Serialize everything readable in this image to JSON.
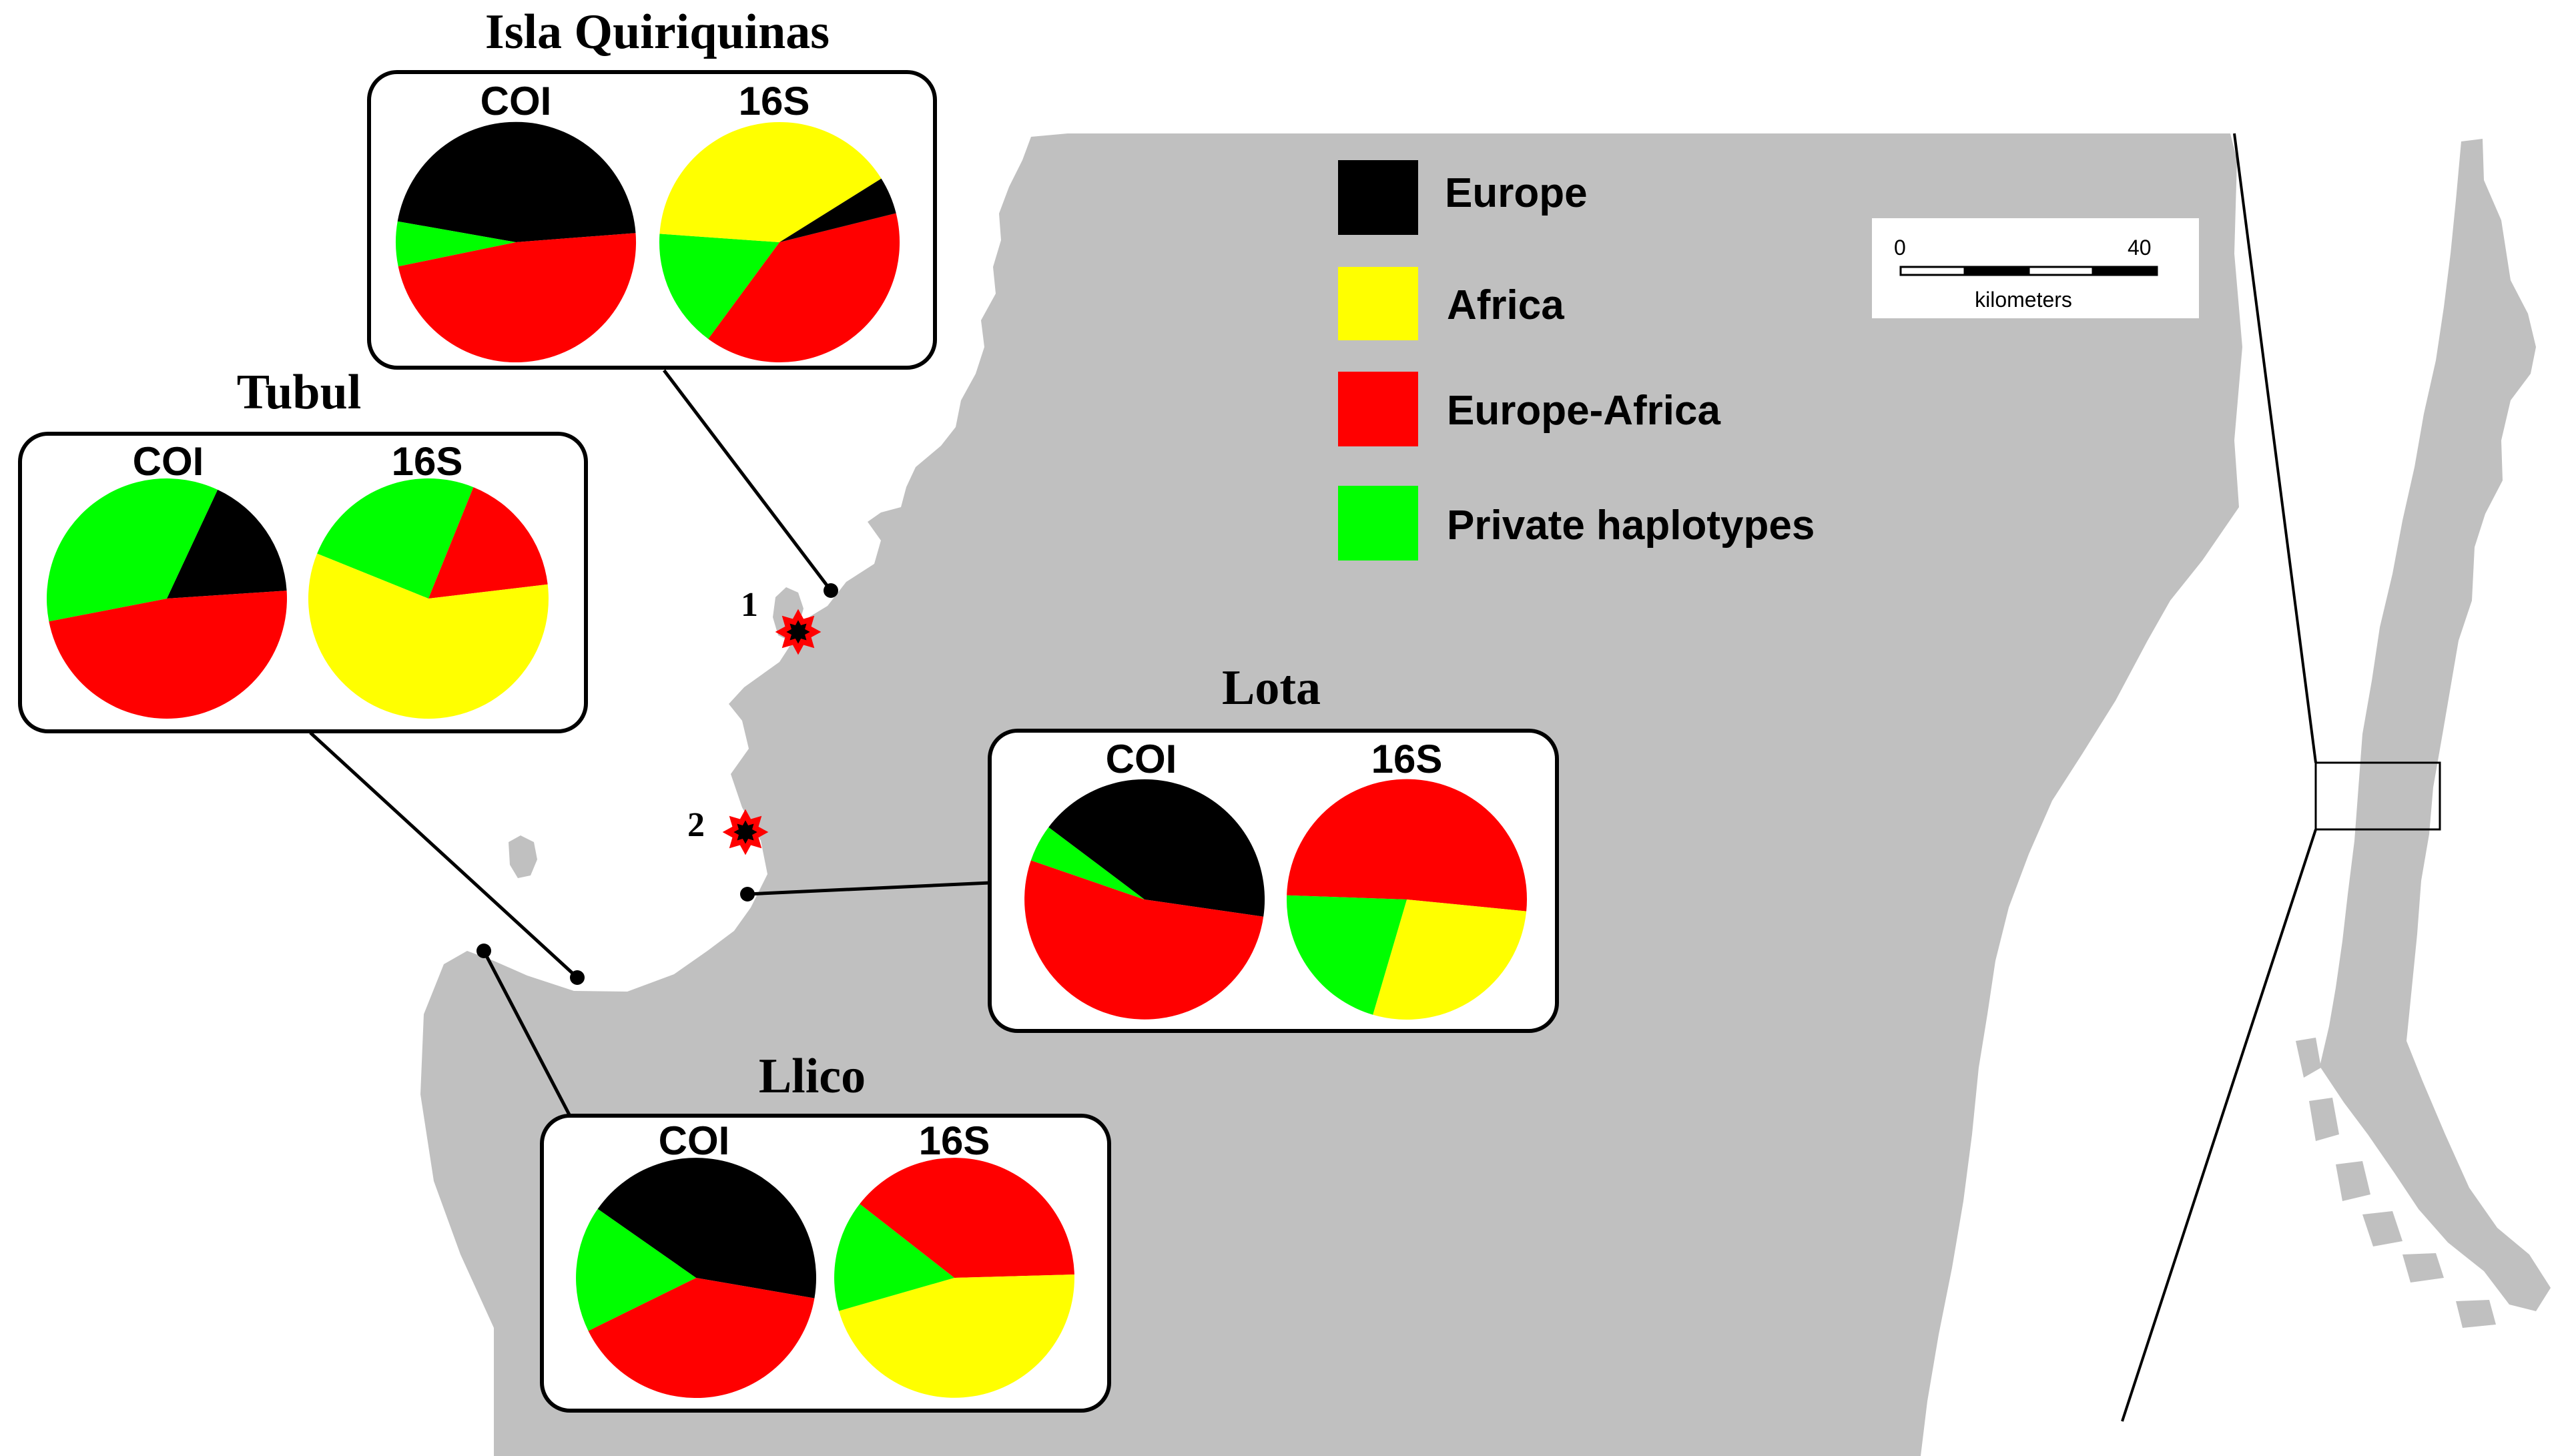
{
  "colors": {
    "land": "#c0c0c0",
    "sea": "#ffffff",
    "europe": "#000000",
    "africa": "#ffff00",
    "europe_africa": "#ff0000",
    "private": "#00ff00"
  },
  "legend": [
    {
      "key": "europe",
      "label": "Europe"
    },
    {
      "key": "africa",
      "label": "Africa"
    },
    {
      "key": "europe_africa",
      "label": "Europe-Africa"
    },
    {
      "key": "private",
      "label": "Private haplotypes"
    }
  ],
  "scale_bar": {
    "start": "0",
    "end": "40",
    "unit": "kilometers"
  },
  "markers": [
    {
      "id": "1",
      "label": "1"
    },
    {
      "id": "2",
      "label": "2"
    }
  ],
  "sites": [
    {
      "name": "Isla Quiriquinas",
      "COI": {
        "label": "COI",
        "europe": 0.46,
        "europe_africa": 0.48,
        "private": 0.06,
        "africa": 0
      },
      "16S": {
        "label": "16S",
        "europe": 0.05,
        "europe_africa": 0.39,
        "private": 0.16,
        "africa": 0.4
      }
    },
    {
      "name": "Tubul",
      "COI": {
        "label": "COI",
        "europe": 0.17,
        "europe_africa": 0.48,
        "private": 0.35,
        "africa": 0
      },
      "16S": {
        "label": "16S",
        "europe": 0,
        "europe_africa": 0.17,
        "private": 0.25,
        "africa": 0.58
      }
    },
    {
      "name": "Lota",
      "COI": {
        "label": "COI",
        "europe": 0.42,
        "europe_africa": 0.53,
        "private": 0.05,
        "africa": 0
      },
      "16S": {
        "label": "16S",
        "europe": 0,
        "europe_africa": 0.51,
        "private": 0.21,
        "africa": 0.28
      }
    },
    {
      "name": "Llico",
      "COI": {
        "label": "COI",
        "europe": 0.43,
        "europe_africa": 0.4,
        "private": 0.17,
        "africa": 0
      },
      "16S": {
        "label": "16S",
        "europe": 0,
        "europe_africa": 0.39,
        "private": 0.15,
        "africa": 0.46
      }
    }
  ]
}
